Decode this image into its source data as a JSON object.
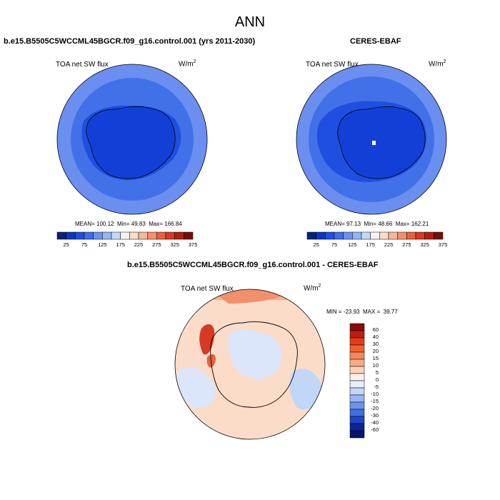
{
  "chart_data": {
    "type": "polar-map",
    "title": "ANN",
    "panels": [
      {
        "id": "model",
        "title": "b.e15.B5505C5WCCML45BGCR.f09_g16.control.001 (yrs 2011-2030)",
        "variable": "TOA net SW flux",
        "units": "W/m",
        "units_sup": "2",
        "stats": {
          "mean_label": "MEAN=",
          "mean": "100.12",
          "min_label": "Min=",
          "min": "49.83",
          "max_label": "Max=",
          "max": "166.84"
        },
        "colorbar": {
          "levels": [
            25,
            50,
            75,
            100,
            125,
            150,
            175,
            200,
            225,
            250,
            275,
            300,
            325,
            350,
            375
          ],
          "labels": [
            "25",
            "75",
            "125",
            "175",
            "225",
            "275",
            "325",
            "375"
          ],
          "colors": [
            "#08217a",
            "#0c37b8",
            "#1f4fe0",
            "#3f6fe6",
            "#6a93f0",
            "#93b6f6",
            "#c3d8fa",
            "#f3f3f3",
            "#fbdcc9",
            "#f8b79a",
            "#f38f6a",
            "#e8603f",
            "#d63a22",
            "#b0200f",
            "#7a0c0c"
          ]
        }
      },
      {
        "id": "obs",
        "title": "CERES-EBAF",
        "variable": "TOA net SW flux",
        "units": "W/m",
        "units_sup": "2",
        "stats": {
          "mean_label": "MEAN=",
          "mean": "97.13",
          "min_label": "Min=",
          "min": "48.66",
          "max_label": "Max=",
          "max": "162.21"
        },
        "colorbar": {
          "levels": [
            25,
            50,
            75,
            100,
            125,
            150,
            175,
            200,
            225,
            250,
            275,
            300,
            325,
            350,
            375
          ],
          "labels": [
            "25",
            "75",
            "125",
            "175",
            "225",
            "275",
            "325",
            "375"
          ],
          "colors": [
            "#08217a",
            "#0c37b8",
            "#1f4fe0",
            "#3f6fe6",
            "#6a93f0",
            "#93b6f6",
            "#c3d8fa",
            "#f3f3f3",
            "#fbdcc9",
            "#f8b79a",
            "#f38f6a",
            "#e8603f",
            "#d63a22",
            "#b0200f",
            "#7a0c0c"
          ]
        }
      },
      {
        "id": "diff",
        "title": "b.e15.B5505C5WCCML45BGCR.f09_g16.control.001 - CERES-EBAF",
        "variable": "TOA net SW flux",
        "units": "W/m",
        "units_sup": "2",
        "stats": {
          "min_label": "MIN =",
          "min": "-23.93",
          "max_label": "MAX =",
          "max": "39.77"
        },
        "colorbar": {
          "labels": [
            "60",
            "40",
            "30",
            "20",
            "15",
            "10",
            "5",
            "0",
            "-5",
            "-10",
            "-15",
            "-20",
            "-30",
            "-40",
            "-60"
          ],
          "colors": [
            "#8a0b0b",
            "#c01d10",
            "#e63b1a",
            "#f26030",
            "#f6875a",
            "#f9ab87",
            "#fcd1b8",
            "#fdf0e8",
            "#e5eefb",
            "#c2d6f7",
            "#97b7f1",
            "#6a94ea",
            "#3f6fe0",
            "#1f45c8",
            "#0c2496",
            "#06166a"
          ]
        }
      }
    ]
  }
}
